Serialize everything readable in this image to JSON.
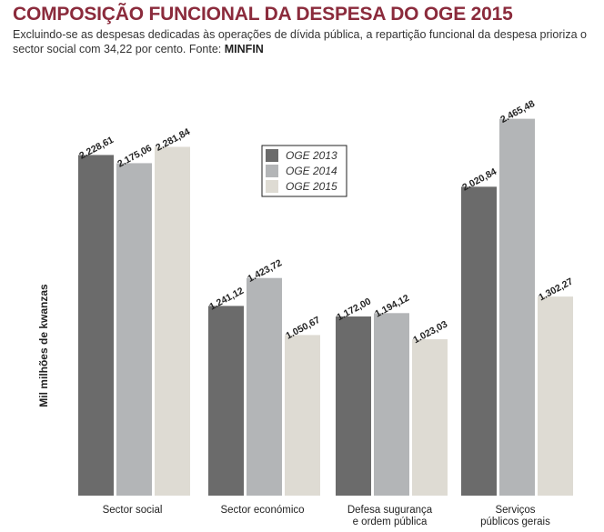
{
  "header": {
    "title": "COMPOSIÇÃO FUNCIONAL DA DESPESA DO OGE 2015",
    "subtitle": "Excluindo-se as despesas dedicadas às operações de dívida pública, a repartição funcional da despesa prioriza o sector social com 34,22 por cento. Fonte: ",
    "source": "MINFIN"
  },
  "chart_data": {
    "type": "bar",
    "title": "",
    "xlabel": "",
    "ylabel": "Mil milhões de kwanzas",
    "ylim": [
      0,
      2600
    ],
    "grid": false,
    "legend_position": "top-center",
    "categories": [
      [
        "Sector social"
      ],
      [
        "Sector económico"
      ],
      [
        "Defesa sugurança",
        "e ordem pública"
      ],
      [
        "Serviços",
        "públicos gerais"
      ]
    ],
    "series": [
      {
        "name": "OGE 2013",
        "color": "#6b6b6b",
        "values": [
          2228.61,
          1241.12,
          1172.0,
          2020.84
        ],
        "labels": [
          "2.228,61",
          "1.241,12",
          "1.172,00",
          "2.020,84"
        ]
      },
      {
        "name": "OGE 2014",
        "color": "#b3b5b7",
        "values": [
          2175.06,
          1423.72,
          1194.12,
          2465.48
        ],
        "labels": [
          "2.175,06",
          "1.423,72",
          "1.194,12",
          "2.465,48"
        ]
      },
      {
        "name": "OGE 2015",
        "color": "#dedbd3",
        "values": [
          2281.84,
          1050.67,
          1023.03,
          1302.27
        ],
        "labels": [
          "2.281,84",
          "1.050,67",
          "1.023,03",
          "1.302,27"
        ]
      }
    ]
  }
}
